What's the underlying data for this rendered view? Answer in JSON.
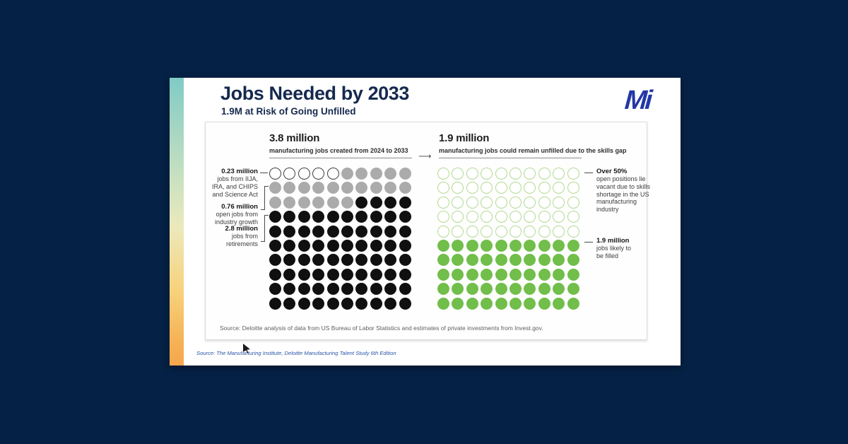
{
  "page": {
    "background": "#052145"
  },
  "slide": {
    "title": "Jobs Needed by 2033",
    "subtitle": "1.9M at Risk of Going Unfilled",
    "logo_text": "Mi",
    "title_color": "#15294E",
    "logo_color": "#2437A6"
  },
  "chart_box": {
    "arrow_glyph": "⟶",
    "source": "Source: Deloitte analysis of data from US Bureau of Labor Statistics and estimates of private investments from Invest.gov."
  },
  "footer": {
    "source": "Source: The Manufacturing Institute, Deloitte Manufacturing Talent Study 6th Edition"
  },
  "chart_data": {
    "type": "pictogram",
    "title": "Jobs Needed by 2033",
    "subtitle": "1.9M at Risk of Going Unfilled",
    "legend_position": "side-annotations",
    "colors": {
      "gray": "#ABABAB",
      "black": "#101010",
      "green": "#71BE4B",
      "outline_dark_border": "#3F3F3F",
      "outline_green_border": "#B2DA92"
    },
    "panels": [
      {
        "id": "jobs-created",
        "header_value": "3.8 million",
        "header_label": "manufacturing jobs created from 2024 to 2033",
        "total_millions": 3.8,
        "grid": {
          "columns": 10,
          "rows": 10
        },
        "segments": [
          {
            "style": "outline-dark",
            "dots": 5,
            "value_millions": 0.23,
            "label": "0.23 million jobs from IIJA, IRA, and CHIPS and Science Act"
          },
          {
            "style": "gray",
            "dots": 21,
            "value_millions": 0.76,
            "label": "0.76 million open jobs from industry growth"
          },
          {
            "style": "black",
            "dots": 74,
            "value_millions": 2.8,
            "label": "2.8 million jobs from retirements"
          }
        ],
        "annotations": [
          {
            "value": "0.23 million",
            "lines": [
              "jobs from IIJA,",
              "IRA, and CHIPS",
              "and Science Act"
            ]
          },
          {
            "value": "0.76 million",
            "lines": [
              "open jobs from",
              "industry growth"
            ]
          },
          {
            "value": "2.8 million",
            "lines": [
              "jobs from",
              "retirements"
            ]
          }
        ]
      },
      {
        "id": "jobs-unfilled",
        "header_value": "1.9 million",
        "header_label": "manufacturing jobs could remain unfilled due to the skills gap",
        "total_millions": 1.9,
        "grid": {
          "columns": 10,
          "rows": 10
        },
        "segments": [
          {
            "style": "outline-green",
            "dots": 50,
            "share_label": "Over 50%",
            "label": "open positions lie vacant due to skills shortage in the US manufacturing industry"
          },
          {
            "style": "green",
            "dots": 50,
            "value_millions": 1.9,
            "label": "1.9 million jobs likely to be filled"
          }
        ],
        "annotations": [
          {
            "value": "Over 50%",
            "lines": [
              "open positions lie",
              "vacant due to skills",
              "shortage in the US",
              "manufacturing",
              "industry"
            ]
          },
          {
            "value": "1.9 million",
            "lines": [
              "jobs likely to",
              "be filled"
            ]
          }
        ]
      }
    ]
  }
}
